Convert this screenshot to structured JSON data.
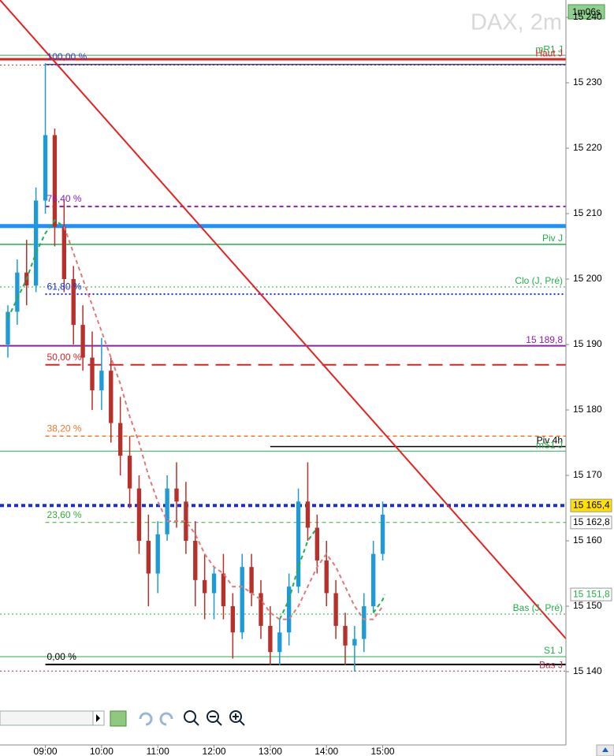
{
  "chart_data": {
    "type": "candlestick",
    "title": "DAX, 2m",
    "timer": "1m06s",
    "xlim": [
      491.6,
      1095.5
    ],
    "ylim": [
      15128.8,
      15242.65
    ],
    "xticks": [
      {
        "value": 540,
        "label": "09:00"
      },
      {
        "value": 600,
        "label": "10:00"
      },
      {
        "value": 660,
        "label": "11:00"
      },
      {
        "value": 720,
        "label": "12:00"
      },
      {
        "value": 780,
        "label": "13:00"
      },
      {
        "value": 840,
        "label": "14:00"
      },
      {
        "value": 900,
        "label": "15:00"
      }
    ],
    "yticks": [
      {
        "value": 15140,
        "label": "15 140"
      },
      {
        "value": 15150,
        "label": "15 150"
      },
      {
        "value": 15160,
        "label": "15 160"
      },
      {
        "value": 15170,
        "label": "15 170"
      },
      {
        "value": 15180,
        "label": "15 180"
      },
      {
        "value": 15190,
        "label": "15 190"
      },
      {
        "value": 15200,
        "label": "15 200"
      },
      {
        "value": 15210,
        "label": "15 210"
      },
      {
        "value": 15220,
        "label": "15 220"
      },
      {
        "value": 15230,
        "label": "15 230"
      },
      {
        "value": 15240,
        "label": "15 240"
      }
    ],
    "up_color": "#1e9bd7",
    "down_color": "#b8302a",
    "x": [
      500,
      510,
      520,
      530,
      540,
      550,
      560,
      570,
      580,
      590,
      600,
      610,
      620,
      630,
      640,
      650,
      660,
      670,
      680,
      690,
      700,
      710,
      720,
      730,
      740,
      750,
      760,
      770,
      780,
      790,
      800,
      810,
      820,
      830,
      840,
      850,
      860,
      870,
      880,
      890,
      900
    ],
    "open": [
      15190,
      15195,
      15201,
      15199,
      15212,
      15222,
      15208,
      15200,
      15193,
      15188,
      15183,
      15186,
      15178,
      15173,
      15168,
      15160,
      15155,
      15161,
      15168,
      15166,
      15160,
      15154,
      15152,
      15155,
      15150,
      15146,
      15156,
      15152,
      15147,
      15143,
      15146,
      15153,
      15166,
      15162,
      15157,
      15152,
      15147,
      15144,
      15145,
      15150,
      15158
    ],
    "high": [
      15196,
      15203,
      15206,
      15214,
      15233,
      15223,
      15212,
      15202,
      15196,
      15192,
      15191,
      15188,
      15182,
      15176,
      15170,
      15164,
      15163,
      15170,
      15172,
      15169,
      15163,
      15158,
      15156,
      15158,
      15152,
      15158,
      15158,
      15154,
      15150,
      15148,
      15155,
      15168,
      15172,
      15164,
      15160,
      15154,
      15149,
      15147,
      15152,
      15160,
      15166
    ],
    "low": [
      15188,
      15193,
      15196,
      15198,
      15210,
      15205,
      15198,
      15190,
      15186,
      15180,
      15180,
      15175,
      15170,
      15165,
      15158,
      15150,
      15152,
      15160,
      15162,
      15158,
      15150,
      15148,
      15148,
      15148,
      15142,
      15145,
      15150,
      15145,
      15141,
      15141,
      15144,
      15152,
      15160,
      15155,
      15150,
      15145,
      15141,
      15140,
      15143,
      15149,
      15157
    ],
    "close": [
      15195,
      15201,
      15199,
      15212,
      15222,
      15208,
      15200,
      15193,
      15188,
      15183,
      15186,
      15178,
      15173,
      15168,
      15160,
      15155,
      15161,
      15168,
      15166,
      15160,
      15154,
      15152,
      15155,
      15150,
      15146,
      15156,
      15152,
      15147,
      15143,
      15146,
      15153,
      15166,
      15162,
      15157,
      15152,
      15147,
      15144,
      15145,
      15150,
      15158,
      15164
    ],
    "averages": [
      {
        "color": "#22b04a",
        "x": [
          500,
          510,
          520,
          530,
          540,
          550,
          560,
          570,
          790,
          800,
          810,
          820,
          830,
          880,
          890,
          900,
          902
        ],
        "values": [
          15194,
          15197,
          15200,
          15204,
          15207,
          15209,
          15208,
          null,
          15148,
          15151,
          15156,
          15160,
          15162,
          null,
          15149,
          15151,
          15151.8
        ]
      },
      {
        "color": "#e07a7a",
        "x": [
          560,
          570,
          580,
          590,
          600,
          610,
          620,
          630,
          640,
          650,
          660,
          670,
          680,
          690,
          700,
          710,
          720,
          730,
          740,
          750,
          760,
          770,
          780,
          790,
          800,
          810,
          820,
          830,
          840,
          850,
          860,
          870,
          880,
          890,
          900
        ],
        "values": [
          15208,
          15204,
          15200,
          15196,
          15192,
          15188,
          15184,
          15179,
          15175,
          15170,
          15166,
          15163,
          15163,
          15163,
          15161,
          15158,
          15156,
          15155,
          15153,
          15153,
          15152,
          15151,
          15149,
          15148,
          15148,
          15150,
          15153,
          15156,
          15158,
          15156,
          15153,
          15150,
          15148,
          15148,
          15150
        ]
      }
    ],
    "trendline": {
      "color": "#e82020",
      "x": [
        491.6,
        1095.5
      ],
      "values": [
        15242.65,
        15145.05
      ]
    },
    "fib_anchor_x": 540,
    "fib_levels": [
      {
        "label": "100,00 %",
        "value": 15232.8,
        "color": "#3a3ab8",
        "style": "solid",
        "width": 1.5
      },
      {
        "label": "76,40 %",
        "value": 15211.1,
        "color": "#8a20b0",
        "style": "dash",
        "width": 2
      },
      {
        "label": "61,80 %",
        "value": 15197.7,
        "color": "#1a2be0",
        "style": "dot",
        "width": 2
      },
      {
        "label": "50,00 %",
        "value": 15186.9,
        "color": "#e02020",
        "style": "longdash",
        "width": 2
      },
      {
        "label": "38,20 %",
        "value": 15176.0,
        "color": "#f07830",
        "style": "dash",
        "width": 1.5
      },
      {
        "label": "23,60 %",
        "value": 15162.8,
        "color": "#30b030",
        "style": "dash",
        "width": 1
      },
      {
        "label": "0,00 %",
        "value": 15141.1,
        "color": "#000000",
        "style": "solid",
        "width": 2
      }
    ],
    "levels": [
      {
        "label": "mR1 J",
        "value": 15234.2,
        "color": "#22b04a",
        "style": "solid",
        "width": 1
      },
      {
        "label": "Haut J",
        "value": 15233.6,
        "color": "#e02020",
        "style": "solid",
        "width": 3
      },
      {
        "value": 15232.7,
        "color": "#b03030",
        "style": "dot",
        "width": 1
      },
      {
        "value": 15208.1,
        "color": "#1e90ff",
        "style": "solid",
        "width": 5
      },
      {
        "label": "Piv J",
        "value": 15205.3,
        "color": "#22b04a",
        "style": "solid",
        "width": 1.5
      },
      {
        "label": "Clo (J, Pré)",
        "value": 15198.8,
        "color": "#22b04a",
        "style": "dot",
        "width": 1
      },
      {
        "label": "15 189,8",
        "value": 15189.8,
        "color": "#8a20b0",
        "style": "solid",
        "width": 2
      },
      {
        "label": "Piv 4h",
        "value": 15174.4,
        "color": "#000000",
        "style": "solid",
        "width": 1.5,
        "x_from": 780
      },
      {
        "label": "mS1 J",
        "value": 15173.7,
        "color": "#22b04a",
        "style": "solid",
        "width": 1
      },
      {
        "value": 15165.4,
        "color": "#1a2be0",
        "style": "dash",
        "width": 4
      },
      {
        "label": "Bas (J, Pré)",
        "value": 15148.8,
        "color": "#22b04a",
        "style": "dot",
        "width": 1
      },
      {
        "label": "S1 J",
        "value": 15142.3,
        "color": "#22b04a",
        "style": "solid",
        "width": 1
      },
      {
        "label": "Bas J",
        "value": 15140.1,
        "color": "#b03050",
        "style": "dot",
        "width": 1
      }
    ],
    "price_tags": [
      {
        "value": 15165.4,
        "label": "15 165,4",
        "color": "#000000",
        "background": "#ffe000"
      },
      {
        "value": 15162.8,
        "label": "15 162,8",
        "color": "#000000",
        "background": "#ffffff"
      },
      {
        "value": 15151.8,
        "label": "15 151,8",
        "color": "#22b04a",
        "background": "#ffffff"
      }
    ]
  }
}
